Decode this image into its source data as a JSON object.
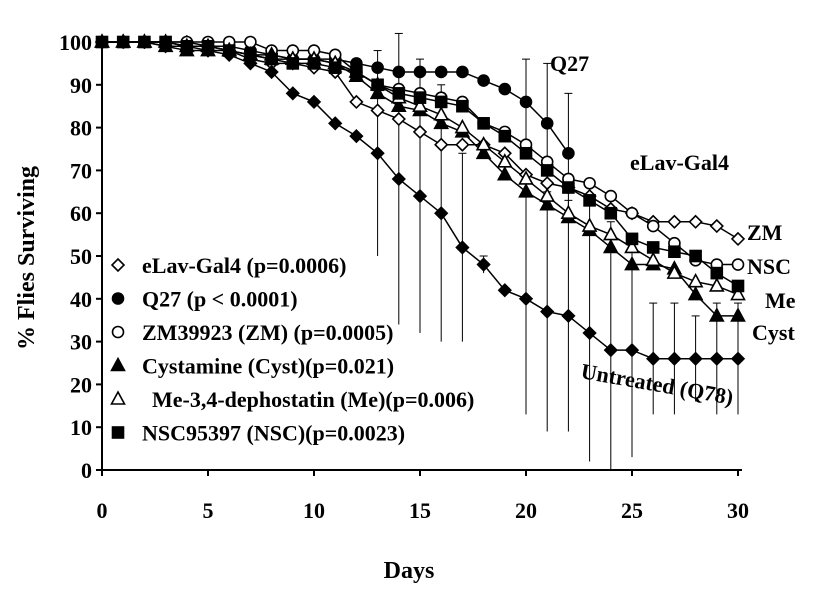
{
  "chart_data": {
    "type": "line",
    "title": "",
    "xlabel": "Days",
    "ylabel": "% Flies Surviving",
    "xlim": [
      0,
      30
    ],
    "ylim": [
      0,
      100
    ],
    "x_ticks": [
      0,
      5,
      10,
      15,
      20,
      25,
      30
    ],
    "y_ticks": [
      0,
      10,
      20,
      30,
      40,
      50,
      60,
      70,
      80,
      90,
      100
    ],
    "grid": false,
    "legend_position": "lower-left",
    "legend": [
      {
        "label": "eLav-Gal4 (p=0.0006)",
        "series": "elav"
      },
      {
        "label": "Q27 (p < 0.0001)",
        "series": "q27"
      },
      {
        "label": "ZM39923 (ZM) (p=0.0005)",
        "series": "zm"
      },
      {
        "label": "Cystamine (Cyst)(p=0.021)",
        "series": "cyst"
      },
      {
        "label": "Me-3,4-dephostatin (Me)(p=0.006)",
        "series": "me"
      },
      {
        "label": "NSC95397 (NSC)(p=0.0023)",
        "series": "nsc"
      }
    ],
    "series": [
      {
        "id": "elav",
        "name": "eLav-Gal4",
        "marker": "diamond-open",
        "x": [
          0,
          1,
          2,
          3,
          4,
          5,
          6,
          7,
          8,
          9,
          10,
          11,
          12,
          13,
          14,
          15,
          16,
          17,
          18,
          19,
          20,
          21,
          22,
          23,
          24,
          25,
          26,
          27,
          28,
          29,
          30
        ],
        "values": [
          100,
          100,
          100,
          100,
          100,
          99,
          98,
          96,
          95,
          95,
          94,
          93,
          86,
          84,
          82,
          79,
          76,
          76,
          76,
          74,
          69,
          67,
          66,
          64,
          61,
          60,
          58,
          58,
          58,
          57,
          54
        ],
        "err": [
          0,
          0,
          0,
          0,
          0,
          0,
          0,
          0,
          0,
          0,
          0,
          0,
          0,
          0,
          0,
          0,
          0,
          0,
          0,
          0,
          0,
          0,
          0,
          0,
          0,
          0,
          0,
          0,
          0,
          0,
          0
        ]
      },
      {
        "id": "q27",
        "name": "Q27",
        "marker": "circle-filled",
        "x": [
          0,
          1,
          2,
          3,
          4,
          5,
          6,
          7,
          8,
          9,
          10,
          11,
          12,
          13,
          14,
          15,
          16,
          17,
          18,
          19,
          20,
          21,
          22
        ],
        "values": [
          100,
          100,
          100,
          100,
          99,
          99,
          99,
          98,
          97,
          96,
          96,
          96,
          95,
          94,
          93,
          93,
          93,
          93,
          91,
          89,
          86,
          81,
          74
        ],
        "err": [
          0,
          0,
          0,
          0,
          0,
          0,
          0,
          0,
          0,
          0,
          0,
          0,
          0,
          0,
          0,
          0,
          0,
          0,
          0,
          0,
          10,
          14,
          14
        ]
      },
      {
        "id": "zm",
        "name": "ZM39923 (ZM)",
        "marker": "circle-open",
        "x": [
          0,
          1,
          2,
          3,
          4,
          5,
          6,
          7,
          8,
          9,
          10,
          11,
          12,
          13,
          14,
          15,
          16,
          17,
          18,
          19,
          20,
          21,
          22,
          23,
          24,
          25,
          26,
          27,
          28,
          29,
          30
        ],
        "values": [
          100,
          100,
          100,
          100,
          100,
          100,
          100,
          100,
          98,
          98,
          98,
          97,
          93,
          90,
          89,
          88,
          87,
          86,
          81,
          79,
          76,
          72,
          68,
          67,
          64,
          60,
          57,
          53,
          49,
          48,
          48
        ],
        "err": [
          0,
          0,
          0,
          0,
          0,
          0,
          0,
          0,
          0,
          0,
          0,
          0,
          0,
          0,
          0,
          0,
          0,
          0,
          0,
          0,
          0,
          0,
          0,
          0,
          0,
          0,
          0,
          0,
          0,
          0,
          0
        ]
      },
      {
        "id": "cyst",
        "name": "Cystamine (Cyst)",
        "marker": "triangle-filled",
        "x": [
          0,
          1,
          2,
          3,
          4,
          5,
          6,
          7,
          8,
          9,
          10,
          11,
          12,
          13,
          14,
          15,
          16,
          17,
          18,
          19,
          20,
          21,
          22,
          23,
          24,
          25,
          26,
          27,
          28,
          29,
          30
        ],
        "values": [
          100,
          100,
          100,
          99,
          98,
          98,
          98,
          97,
          97,
          96,
          96,
          95,
          92,
          88,
          85,
          84,
          81,
          79,
          74,
          69,
          65,
          62,
          59,
          56,
          52,
          48,
          48,
          47,
          41,
          36,
          36
        ],
        "err": [
          0,
          0,
          0,
          0,
          0,
          0,
          0,
          0,
          0,
          0,
          0,
          0,
          0,
          0,
          0,
          0,
          0,
          0,
          0,
          0,
          0,
          0,
          0,
          0,
          0,
          0,
          0,
          0,
          0,
          0,
          0
        ]
      },
      {
        "id": "me",
        "name": "Me-3,4-dephostatin (Me)",
        "marker": "triangle-open",
        "x": [
          0,
          1,
          2,
          3,
          4,
          5,
          6,
          7,
          8,
          9,
          10,
          11,
          12,
          13,
          14,
          15,
          16,
          17,
          18,
          19,
          20,
          21,
          22,
          23,
          24,
          25,
          26,
          27,
          28,
          29,
          30
        ],
        "values": [
          100,
          100,
          100,
          100,
          99,
          99,
          98,
          97,
          96,
          96,
          96,
          95,
          93,
          90,
          87,
          85,
          83,
          80,
          76,
          72,
          68,
          64,
          60,
          57,
          55,
          52,
          49,
          46,
          44,
          43,
          41
        ],
        "err": [
          0,
          0,
          0,
          0,
          0,
          0,
          0,
          0,
          0,
          0,
          0,
          0,
          0,
          0,
          0,
          0,
          0,
          0,
          0,
          0,
          0,
          0,
          0,
          0,
          0,
          0,
          0,
          0,
          0,
          0,
          0
        ]
      },
      {
        "id": "nsc",
        "name": "NSC95397 (NSC)",
        "marker": "square-filled",
        "x": [
          0,
          1,
          2,
          3,
          4,
          5,
          6,
          7,
          8,
          9,
          10,
          11,
          12,
          13,
          14,
          15,
          16,
          17,
          18,
          19,
          20,
          21,
          22,
          23,
          24,
          25,
          26,
          27,
          28,
          29,
          30
        ],
        "values": [
          100,
          100,
          100,
          100,
          99,
          99,
          98,
          97,
          96,
          95,
          95,
          94,
          93,
          90,
          88,
          87,
          86,
          85,
          81,
          78,
          74,
          70,
          66,
          63,
          60,
          54,
          52,
          51,
          50,
          46,
          43
        ],
        "err": [
          0,
          0,
          0,
          0,
          0,
          0,
          0,
          0,
          0,
          0,
          0,
          0,
          0,
          0,
          0,
          0,
          0,
          0,
          0,
          0,
          0,
          0,
          0,
          0,
          0,
          0,
          0,
          0,
          0,
          0,
          0
        ]
      },
      {
        "id": "untreated",
        "name": "Untreated (Q78)",
        "marker": "diamond-filled",
        "x": [
          0,
          1,
          2,
          3,
          4,
          5,
          6,
          7,
          8,
          9,
          10,
          11,
          12,
          13,
          14,
          15,
          16,
          17,
          18,
          19,
          20,
          21,
          22,
          23,
          24,
          25,
          26,
          27,
          28,
          29,
          30
        ],
        "values": [
          100,
          100,
          100,
          99,
          99,
          98,
          97,
          95,
          93,
          88,
          86,
          81,
          78,
          74,
          68,
          64,
          60,
          52,
          48,
          42,
          40,
          37,
          36,
          32,
          28,
          28,
          26,
          26,
          26,
          26,
          26
        ],
        "err": [
          0,
          0,
          0,
          0,
          0,
          0,
          0,
          0,
          0,
          0,
          0,
          0,
          0,
          24,
          34,
          32,
          30,
          22,
          2,
          0,
          27,
          28,
          27,
          30,
          30,
          25,
          13,
          13,
          10,
          13,
          13
        ]
      }
    ],
    "annotations": [
      {
        "text": "Q27",
        "series": "q27"
      },
      {
        "text": "eLav-Gal4",
        "series": "elav"
      },
      {
        "text": "ZM",
        "series": "zm"
      },
      {
        "text": "NSC",
        "series": "nsc"
      },
      {
        "text": "Me",
        "series": "me"
      },
      {
        "text": "Cyst",
        "series": "cyst"
      },
      {
        "text": "Untreated (Q78)",
        "series": "untreated"
      }
    ]
  }
}
